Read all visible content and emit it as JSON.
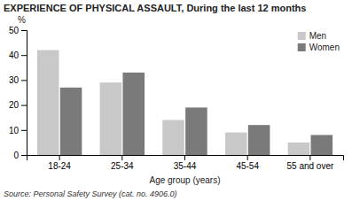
{
  "chart_data": {
    "type": "bar",
    "title": "EXPERIENCE OF PHYSICAL ASSAULT, During the last 12 months",
    "categories": [
      "18-24",
      "25-34",
      "35-44",
      "45-54",
      "55 and over"
    ],
    "series": [
      {
        "name": "Men",
        "color": "#c8c8c8",
        "values": [
          42,
          29,
          14,
          9,
          5
        ]
      },
      {
        "name": "Women",
        "color": "#7a7a7a",
        "values": [
          27,
          33,
          19,
          12,
          8
        ]
      }
    ],
    "xlabel": "Age group (years)",
    "ylabel": "%",
    "ylim": [
      0,
      50
    ],
    "yticks": [
      0,
      10,
      20,
      30,
      40,
      50
    ],
    "grid": false,
    "legend": "upper right",
    "source": "Source: Personal Safety Survey (cat. no. 4906.0)"
  }
}
